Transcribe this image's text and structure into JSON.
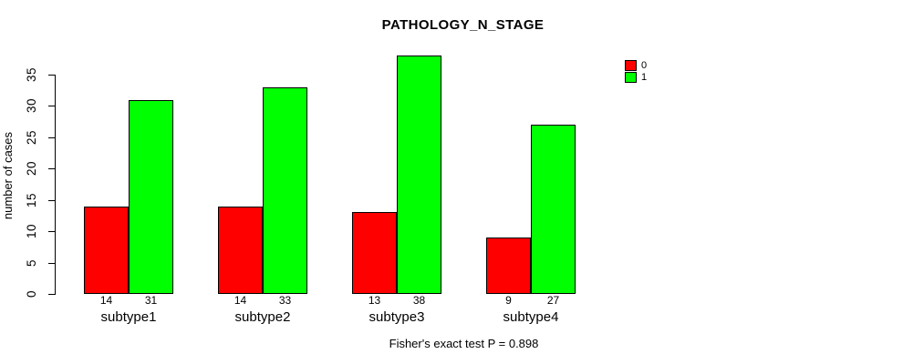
{
  "chart_data": {
    "type": "bar",
    "title": "PATHOLOGY_N_STAGE",
    "ylabel": "number of cases",
    "xlabel": "",
    "caption": "Fisher's exact test P = 0.898",
    "categories": [
      "subtype1",
      "subtype2",
      "subtype3",
      "subtype4"
    ],
    "series": [
      {
        "name": "0",
        "color": "#ff0000",
        "values": [
          14,
          14,
          13,
          9
        ]
      },
      {
        "name": "1",
        "color": "#00ff00",
        "values": [
          31,
          33,
          38,
          27
        ]
      }
    ],
    "yticks": [
      0,
      5,
      10,
      15,
      20,
      25,
      30,
      35
    ],
    "ylim": [
      0,
      38
    ],
    "bar_value_labels": true,
    "legend_position": "top-right",
    "grid": false,
    "axis_color": "#000000",
    "text_color": "#000000",
    "background": "#ffffff"
  }
}
